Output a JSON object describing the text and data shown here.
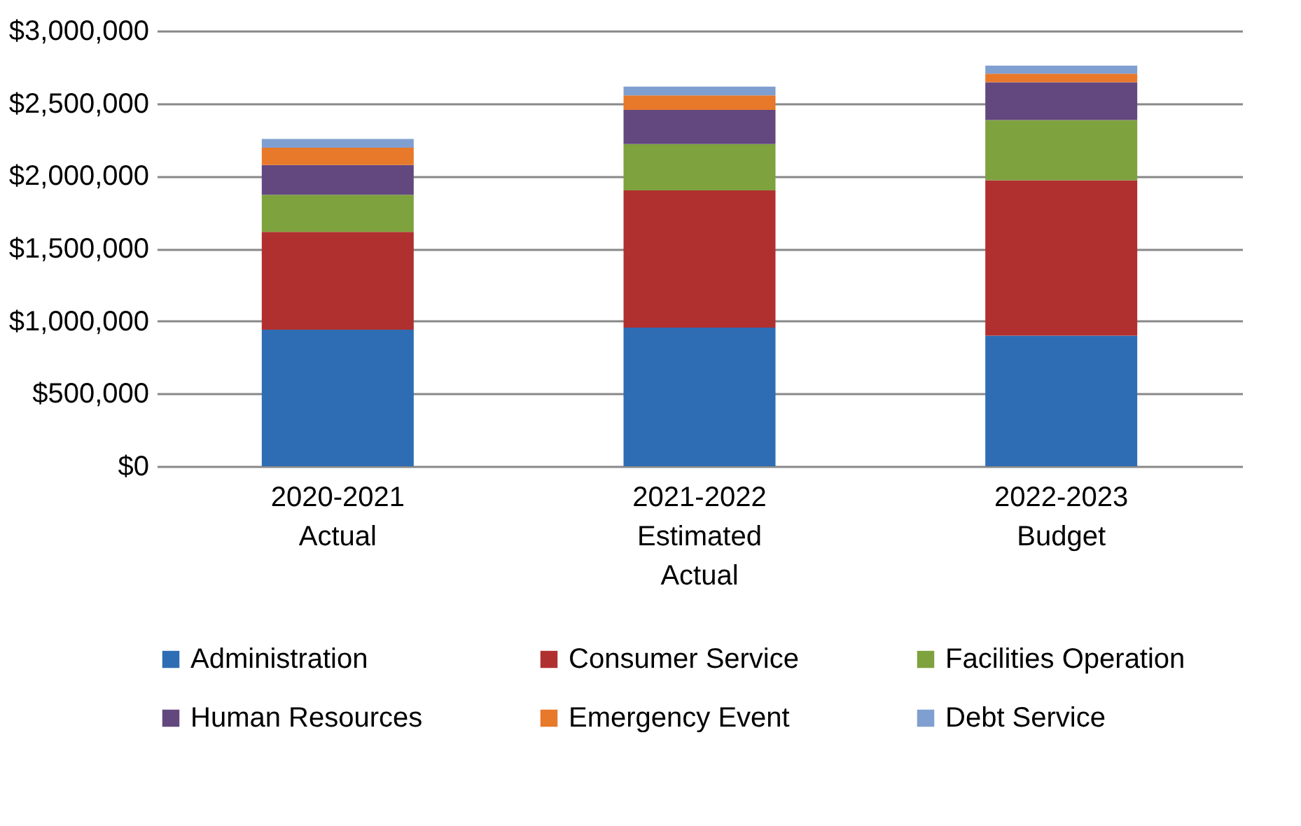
{
  "chart_data": {
    "type": "bar",
    "stacked": true,
    "categories": [
      "2020-2021 Actual",
      "2021-2022 Estimated Actual",
      "2022-2023 Budget"
    ],
    "series": [
      {
        "name": "Administration",
        "color": "#2e6db4",
        "values": [
          940000,
          955000,
          900000
        ]
      },
      {
        "name": "Consumer Service",
        "color": "#b03030",
        "values": [
          675000,
          945000,
          1070000
        ]
      },
      {
        "name": "Facilities Operation",
        "color": "#7ea23e",
        "values": [
          255000,
          320000,
          415000
        ]
      },
      {
        "name": "Human Resources",
        "color": "#63487f",
        "values": [
          205000,
          235000,
          260000
        ]
      },
      {
        "name": "Emergency Event",
        "color": "#e8782a",
        "values": [
          120000,
          100000,
          60000
        ]
      },
      {
        "name": "Debt Service",
        "color": "#7f9fd0",
        "values": [
          60000,
          60000,
          55000
        ]
      }
    ],
    "ylim": [
      0,
      3000000
    ],
    "yticks": [
      {
        "value": 0,
        "label": "$0"
      },
      {
        "value": 500000,
        "label": "$500,000"
      },
      {
        "value": 1000000,
        "label": "$1,000,000"
      },
      {
        "value": 1500000,
        "label": "$1,500,000"
      },
      {
        "value": 2000000,
        "label": "$2,000,000"
      },
      {
        "value": 2500000,
        "label": "$2,500,000"
      },
      {
        "value": 3000000,
        "label": "$3,000,000"
      }
    ],
    "grid": "y",
    "legend": "bottom"
  }
}
